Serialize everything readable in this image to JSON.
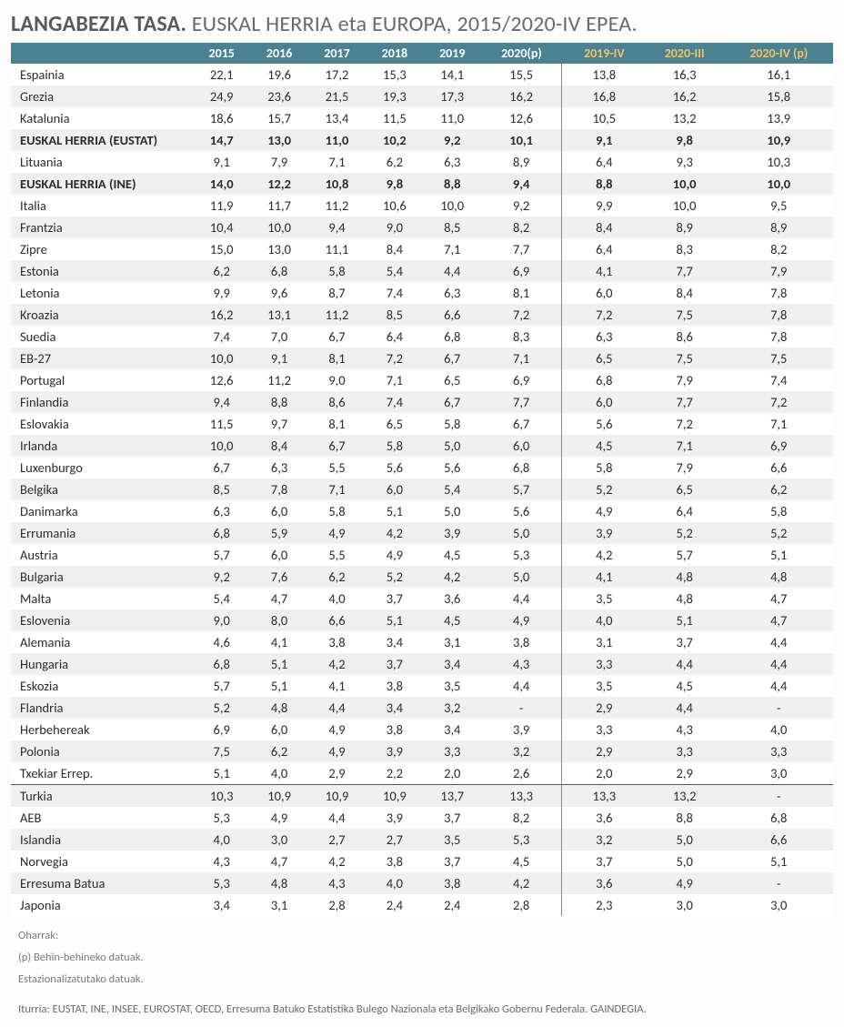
{
  "title_bold": "LANGABEZIA TASA.",
  "title_rest": " EUSKAL HERRIA eta EUROPA, 2015/2020-IV EPEA.",
  "columns": [
    "2015",
    "2016",
    "2017",
    "2018",
    "2019",
    "2020(p)",
    "2019-IV",
    "2020-III",
    "2020-IV (p)"
  ],
  "rows": [
    {
      "name": "Espainia",
      "v": [
        "22,1",
        "19,6",
        "17,2",
        "15,3",
        "14,1",
        "15,5",
        "13,8",
        "16,3",
        "16,1"
      ]
    },
    {
      "name": "Grezia",
      "v": [
        "24,9",
        "23,6",
        "21,5",
        "19,3",
        "17,3",
        "16,2",
        "16,8",
        "16,2",
        "15,8"
      ]
    },
    {
      "name": "Katalunia",
      "v": [
        "18,6",
        "15,7",
        "13,4",
        "11,5",
        "11,0",
        "12,6",
        "10,5",
        "13,2",
        "13,9"
      ]
    },
    {
      "name": "EUSKAL HERRIA (EUSTAT)",
      "v": [
        "14,7",
        "13,0",
        "11,0",
        "10,2",
        "9,2",
        "10,1",
        "9,1",
        "9,8",
        "10,9"
      ],
      "bold": true
    },
    {
      "name": "Lituania",
      "v": [
        "9,1",
        "7,9",
        "7,1",
        "6,2",
        "6,3",
        "8,9",
        "6,4",
        "9,3",
        "10,3"
      ]
    },
    {
      "name": "EUSKAL HERRIA (INE)",
      "v": [
        "14,0",
        "12,2",
        "10,8",
        "9,8",
        "8,8",
        "9,4",
        "8,8",
        "10,0",
        "10,0"
      ],
      "bold": true
    },
    {
      "name": "Italia",
      "v": [
        "11,9",
        "11,7",
        "11,2",
        "10,6",
        "10,0",
        "9,2",
        "9,9",
        "10,0",
        "9,5"
      ]
    },
    {
      "name": "Frantzia",
      "v": [
        "10,4",
        "10,0",
        "9,4",
        "9,0",
        "8,5",
        "8,2",
        "8,4",
        "8,9",
        "8,9"
      ]
    },
    {
      "name": "Zipre",
      "v": [
        "15,0",
        "13,0",
        "11,1",
        "8,4",
        "7,1",
        "7,7",
        "6,4",
        "8,3",
        "8,2"
      ]
    },
    {
      "name": "Estonia",
      "v": [
        "6,2",
        "6,8",
        "5,8",
        "5,4",
        "4,4",
        "6,9",
        "4,1",
        "7,7",
        "7,9"
      ]
    },
    {
      "name": "Letonia",
      "v": [
        "9,9",
        "9,6",
        "8,7",
        "7,4",
        "6,3",
        "8,1",
        "6,0",
        "8,4",
        "7,8"
      ]
    },
    {
      "name": "Kroazia",
      "v": [
        "16,2",
        "13,1",
        "11,2",
        "8,5",
        "6,6",
        "7,2",
        "7,2",
        "7,5",
        "7,8"
      ]
    },
    {
      "name": "Suedia",
      "v": [
        "7,4",
        "7,0",
        "6,7",
        "6,4",
        "6,8",
        "8,3",
        "6,3",
        "8,6",
        "7,8"
      ]
    },
    {
      "name": "EB-27",
      "v": [
        "10,0",
        "9,1",
        "8,1",
        "7,2",
        "6,7",
        "7,1",
        "6,5",
        "7,5",
        "7,5"
      ]
    },
    {
      "name": "Portugal",
      "v": [
        "12,6",
        "11,2",
        "9,0",
        "7,1",
        "6,5",
        "6,9",
        "6,8",
        "7,9",
        "7,4"
      ]
    },
    {
      "name": "Finlandia",
      "v": [
        "9,4",
        "8,8",
        "8,6",
        "7,4",
        "6,7",
        "7,7",
        "6,0",
        "7,7",
        "7,2"
      ]
    },
    {
      "name": "Eslovakia",
      "v": [
        "11,5",
        "9,7",
        "8,1",
        "6,5",
        "5,8",
        "6,7",
        "5,6",
        "7,2",
        "7,1"
      ]
    },
    {
      "name": "Irlanda",
      "v": [
        "10,0",
        "8,4",
        "6,7",
        "5,8",
        "5,0",
        "6,0",
        "4,5",
        "7,1",
        "6,9"
      ]
    },
    {
      "name": "Luxenburgo",
      "v": [
        "6,7",
        "6,3",
        "5,5",
        "5,6",
        "5,6",
        "6,8",
        "5,8",
        "7,9",
        "6,6"
      ]
    },
    {
      "name": "Belgika",
      "v": [
        "8,5",
        "7,8",
        "7,1",
        "6,0",
        "5,4",
        "5,7",
        "5,2",
        "6,5",
        "6,2"
      ]
    },
    {
      "name": "Danimarka",
      "v": [
        "6,3",
        "6,0",
        "5,8",
        "5,1",
        "5,0",
        "5,6",
        "4,9",
        "6,4",
        "5,8"
      ]
    },
    {
      "name": "Errumania",
      "v": [
        "6,8",
        "5,9",
        "4,9",
        "4,2",
        "3,9",
        "5,0",
        "3,9",
        "5,2",
        "5,2"
      ]
    },
    {
      "name": "Austria",
      "v": [
        "5,7",
        "6,0",
        "5,5",
        "4,9",
        "4,5",
        "5,3",
        "4,2",
        "5,7",
        "5,1"
      ]
    },
    {
      "name": "Bulgaria",
      "v": [
        "9,2",
        "7,6",
        "6,2",
        "5,2",
        "4,2",
        "5,0",
        "4,1",
        "4,8",
        "4,8"
      ]
    },
    {
      "name": "Malta",
      "v": [
        "5,4",
        "4,7",
        "4,0",
        "3,7",
        "3,6",
        "4,4",
        "3,5",
        "4,8",
        "4,7"
      ]
    },
    {
      "name": "Eslovenia",
      "v": [
        "9,0",
        "8,0",
        "6,6",
        "5,1",
        "4,5",
        "4,9",
        "4,0",
        "5,1",
        "4,7"
      ]
    },
    {
      "name": "Alemania",
      "v": [
        "4,6",
        "4,1",
        "3,8",
        "3,4",
        "3,1",
        "3,8",
        "3,1",
        "3,7",
        "4,4"
      ]
    },
    {
      "name": "Hungaria",
      "v": [
        "6,8",
        "5,1",
        "4,2",
        "3,7",
        "3,4",
        "4,3",
        "3,3",
        "4,4",
        "4,4"
      ]
    },
    {
      "name": "Eskozia",
      "v": [
        "5,7",
        "5,1",
        "4,1",
        "3,8",
        "3,5",
        "4,4",
        "3,5",
        "4,5",
        "4,4"
      ]
    },
    {
      "name": "Flandria",
      "v": [
        "5,2",
        "4,8",
        "4,4",
        "3,4",
        "3,2",
        "-",
        "2,9",
        "4,4",
        "-"
      ]
    },
    {
      "name": "Herbehereak",
      "v": [
        "6,9",
        "6,0",
        "4,9",
        "3,8",
        "3,4",
        "3,9",
        "3,3",
        "4,3",
        "4,0"
      ]
    },
    {
      "name": "Polonia",
      "v": [
        "7,5",
        "6,2",
        "4,9",
        "3,9",
        "3,3",
        "3,2",
        "2,9",
        "3,3",
        "3,3"
      ]
    },
    {
      "name": "Txekiar Errep.",
      "v": [
        "5,1",
        "4,0",
        "2,9",
        "2,2",
        "2,0",
        "2,6",
        "2,0",
        "2,9",
        "3,0"
      ]
    },
    {
      "name": "Turkia",
      "v": [
        "10,3",
        "10,9",
        "10,9",
        "10,9",
        "13,7",
        "13,3",
        "13,3",
        "13,2",
        "-"
      ],
      "divider": true
    },
    {
      "name": "AEB",
      "v": [
        "5,3",
        "4,9",
        "4,4",
        "3,9",
        "3,7",
        "8,2",
        "3,6",
        "8,8",
        "6,8"
      ]
    },
    {
      "name": "Islandia",
      "v": [
        "4,0",
        "3,0",
        "2,7",
        "2,7",
        "3,5",
        "5,3",
        "3,2",
        "5,0",
        "6,6"
      ]
    },
    {
      "name": "Norvegia",
      "v": [
        "4,3",
        "4,7",
        "4,2",
        "3,8",
        "3,7",
        "4,5",
        "3,7",
        "5,0",
        "5,1"
      ]
    },
    {
      "name": "Erresuma Batua",
      "v": [
        "5,3",
        "4,8",
        "4,3",
        "4,0",
        "3,8",
        "4,2",
        "3,6",
        "4,9",
        "-"
      ]
    },
    {
      "name": "Japonia",
      "v": [
        "3,4",
        "3,1",
        "2,8",
        "2,4",
        "2,4",
        "2,8",
        "2,3",
        "3,0",
        "3,0"
      ]
    }
  ],
  "notes_label": "Oharrak:",
  "note1": "(p) Behin-behineko datuak.",
  "note2": "Estazionalizatutako datuak.",
  "source": "Iturria: EUSTAT, INE, INSEE, EUROSTAT, OECD, Erresuma Batuko Estatistika Bulego Nazionala eta Belgikako Gobernu Federala. GAINDEGIA.",
  "header_bg": "#4b8291",
  "alt_header_color": "#f5c06a",
  "row_even_bg": "#f0f0f0",
  "row_odd_bg": "#ffffff"
}
